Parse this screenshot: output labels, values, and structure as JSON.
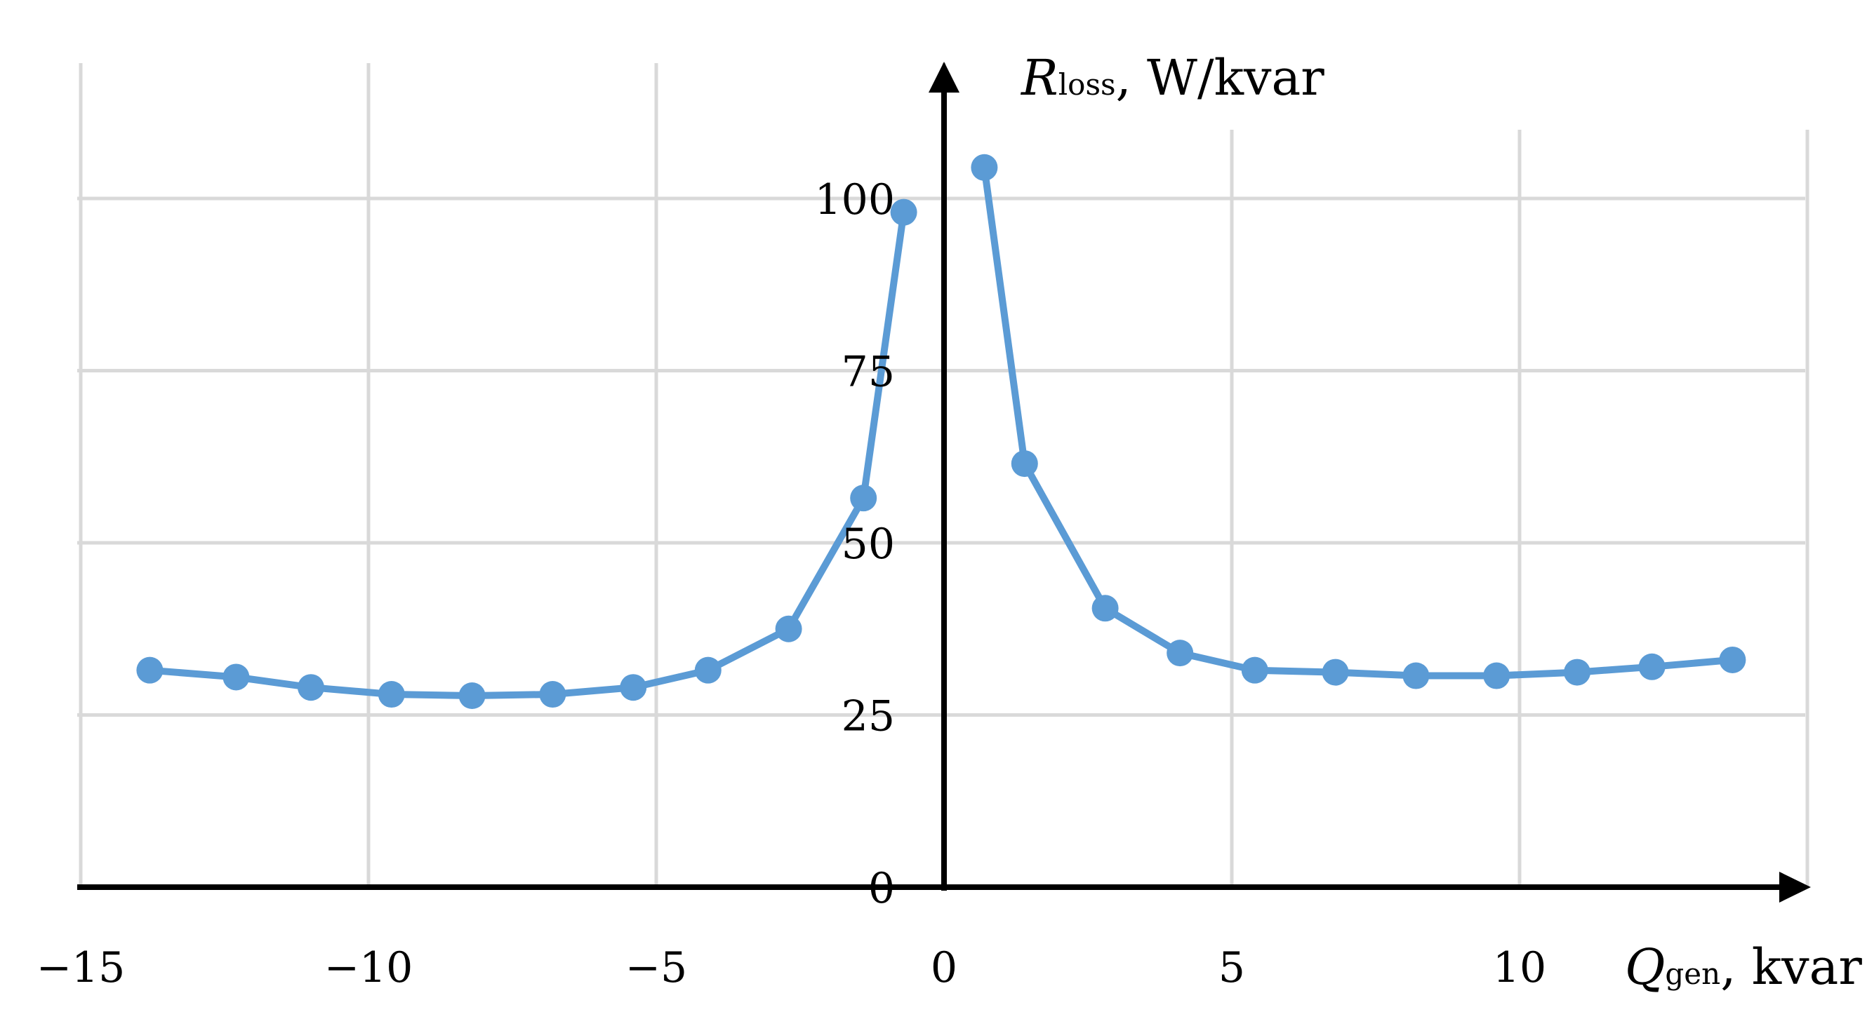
{
  "chart_data": {
    "type": "line",
    "x_axis": {
      "label_var": "Q",
      "label_sub": "gen",
      "label_unit": ", kvar",
      "ticks": [
        -15,
        -10,
        -5,
        0,
        5,
        10
      ],
      "tick_labels": [
        "−15",
        "−10",
        "−5",
        "0",
        "5",
        "10"
      ],
      "range": [
        -15,
        15
      ]
    },
    "y_axis": {
      "label_var": "R",
      "label_sub": "loss",
      "label_unit": ", W/kvar",
      "ticks": [
        0,
        25,
        50,
        75,
        100
      ],
      "tick_labels": [
        "0",
        "25",
        "50",
        "75",
        "100"
      ],
      "range": [
        0,
        115
      ]
    },
    "grid": true,
    "colors": {
      "series": "#5b9bd5",
      "grid": "#d9d9d9",
      "axis": "#000000"
    },
    "series": [
      {
        "x": [
          -13.8,
          -12.3,
          -11.0,
          -9.6,
          -8.2,
          -6.8,
          -5.4,
          -4.1,
          -2.7,
          -1.4,
          -0.7
        ],
        "y": [
          31.5,
          30.5,
          29.0,
          28.0,
          27.8,
          28.0,
          29.0,
          31.5,
          37.5,
          56.5,
          98.0
        ]
      },
      {
        "x": [
          0.7,
          1.4,
          2.8,
          4.1,
          5.4,
          6.8,
          8.2,
          9.6,
          11.0,
          12.3,
          13.7
        ],
        "y": [
          104.5,
          61.5,
          40.5,
          34.0,
          31.5,
          31.2,
          30.7,
          30.7,
          31.2,
          32.0,
          33.0
        ]
      }
    ]
  }
}
